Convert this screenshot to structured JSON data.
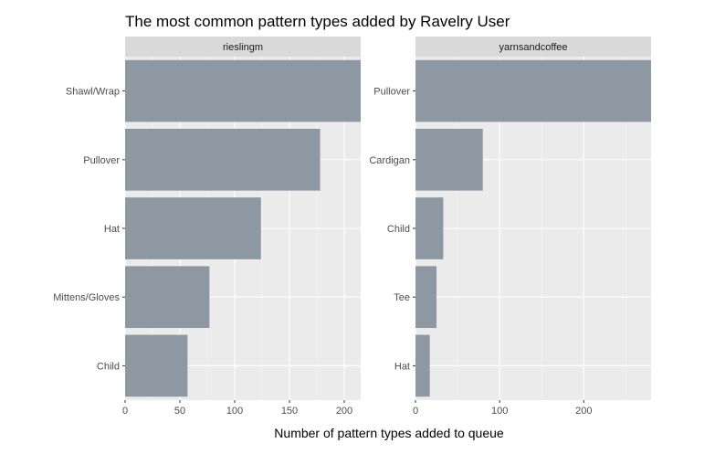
{
  "chart_data": {
    "type": "bar",
    "orientation": "horizontal",
    "title": "The most common pattern types added by Ravelry User",
    "xlabel": "Number of pattern types added to queue",
    "ylabel": "",
    "bar_color": "#8c96a0",
    "panel_background": "#ebebeb",
    "strip_background": "#d9d9d9",
    "grid": true,
    "panels": [
      {
        "name": "rieslingm",
        "categories": [
          "Shawl/Wrap",
          "Pullover",
          "Hat",
          "Mittens/Gloves",
          "Child"
        ],
        "values": [
          215,
          178,
          124,
          77,
          57
        ],
        "xlim": [
          0,
          215
        ],
        "xticks": [
          0,
          50,
          100,
          150,
          200
        ]
      },
      {
        "name": "yarnsandcoffee",
        "categories": [
          "Pullover",
          "Cardigan",
          "Child",
          "Tee",
          "Hat"
        ],
        "values": [
          280,
          80,
          33,
          25,
          17
        ],
        "xlim": [
          0,
          280
        ],
        "xticks": [
          0,
          100,
          200
        ]
      }
    ]
  }
}
